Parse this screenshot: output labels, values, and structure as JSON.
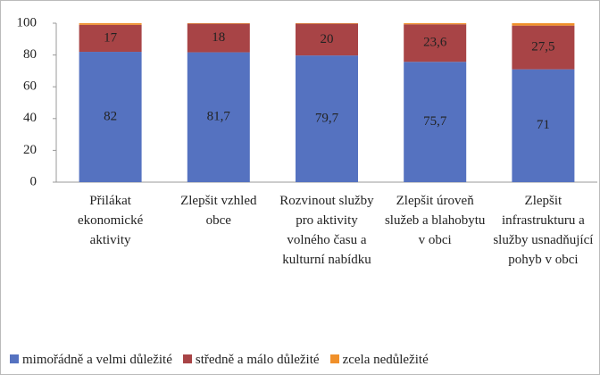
{
  "chart_data": {
    "type": "stacked_bar",
    "categories": [
      "Přilákat ekonomické aktivity",
      "Zlepšit vzhled obce",
      "Rozvinout služby pro aktivity volného času a kulturní nabídku",
      "Zlepšit úroveň služeb a blahobytu v obci",
      "Zlepšit infrastrukturu a služby usnadňující pohyb v obci"
    ],
    "series": [
      {
        "name": "mimořádně a velmi důležité",
        "color": "#5572c0",
        "values": [
          82,
          81.7,
          79.7,
          75.7,
          71
        ],
        "value_labels": [
          "82",
          "81,7",
          "79,7",
          "75,7",
          "71"
        ]
      },
      {
        "name": "středně a málo důležité",
        "color": "#a84446",
        "values": [
          17,
          18,
          20,
          23.6,
          27.5
        ],
        "value_labels": [
          "17",
          "18",
          "20",
          "23,6",
          "27,5"
        ]
      },
      {
        "name": "zcela nedůležité",
        "color": "#f0902a",
        "values": [
          1,
          0.3,
          0.3,
          0.7,
          1.5
        ]
      }
    ],
    "ylim": [
      0,
      100
    ],
    "yticks": [
      0,
      20,
      40,
      60,
      80,
      100
    ],
    "legend": "bottom"
  }
}
